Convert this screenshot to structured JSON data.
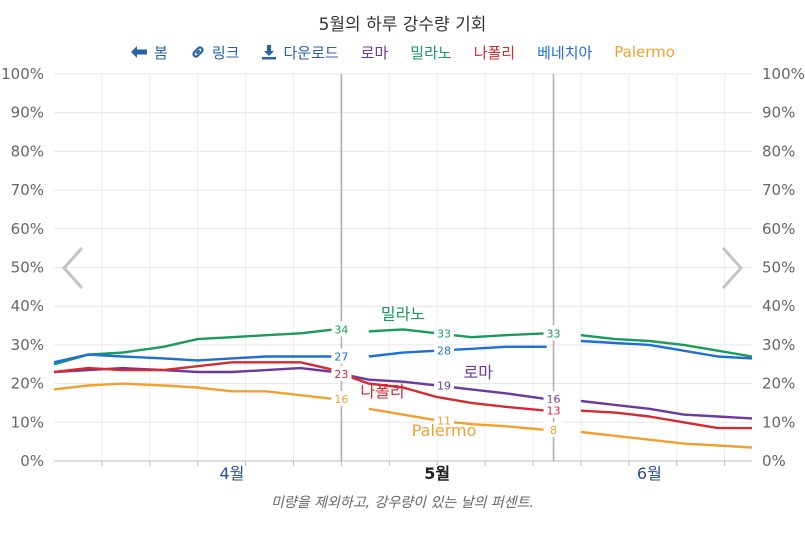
{
  "title": "5월의 하루 강수량 기회",
  "caption": "미량을 제외하고, 강우량이 있는 날의 퍼센트.",
  "toolbar": {
    "back_label": "봄",
    "link_label": "링크",
    "download_label": "다운로드"
  },
  "icons": {
    "back": "arrow-left-icon",
    "link": "link-icon",
    "download": "download-icon",
    "prev": "chevron-left-icon",
    "next": "chevron-right-icon"
  },
  "chart_data": {
    "type": "line",
    "x_start": "2024-03-20",
    "x_end": "2024-06-30",
    "y_range": [
      0,
      100
    ],
    "y_ticks": [
      "0%",
      "10%",
      "20%",
      "30%",
      "40%",
      "50%",
      "60%",
      "70%",
      "80%",
      "90%",
      "100%"
    ],
    "x_month_labels": [
      {
        "label": "4월",
        "date": "2024-04-15"
      },
      {
        "label": "5월",
        "date": "2024-05-15"
      },
      {
        "label": "6월",
        "date": "2024-06-15"
      }
    ],
    "reference_dates": [
      "2024-05-01",
      "2024-06-01"
    ],
    "grid": true,
    "series": [
      {
        "name": "로마",
        "color": "#6b3a9c",
        "points": [
          [
            "2024-03-20",
            23
          ],
          [
            "2024-03-25",
            23.5
          ],
          [
            "2024-03-30",
            24
          ],
          [
            "2024-04-05",
            23.5
          ],
          [
            "2024-04-10",
            23
          ],
          [
            "2024-04-15",
            23
          ],
          [
            "2024-04-20",
            23.5
          ],
          [
            "2024-04-25",
            24
          ],
          [
            "2024-04-30",
            23
          ],
          [
            "2024-05-01",
            22.5
          ],
          [
            "2024-05-05",
            21
          ],
          [
            "2024-05-10",
            20.5
          ],
          [
            "2024-05-15",
            19.5
          ],
          [
            "2024-05-20",
            18.5
          ],
          [
            "2024-05-25",
            17.5
          ],
          [
            "2024-05-31",
            16
          ],
          [
            "2024-06-05",
            15.5
          ],
          [
            "2024-06-10",
            14.5
          ],
          [
            "2024-06-15",
            13.5
          ],
          [
            "2024-06-20",
            12
          ],
          [
            "2024-06-25",
            11.5
          ],
          [
            "2024-06-30",
            11
          ]
        ],
        "labels": [
          {
            "date": "2024-05-01",
            "text": "23"
          },
          {
            "date": "2024-06-01",
            "text": "16"
          },
          {
            "date": "2024-05-16",
            "text": "19"
          }
        ],
        "legend_label": "로마",
        "name_label": {
          "text": "로마",
          "date": "2024-05-21",
          "value": 21.5
        }
      },
      {
        "name": "밀라노",
        "color": "#1a9a5c",
        "points": [
          [
            "2024-03-20",
            25
          ],
          [
            "2024-03-25",
            27.5
          ],
          [
            "2024-03-30",
            28
          ],
          [
            "2024-04-05",
            29.5
          ],
          [
            "2024-04-10",
            31.5
          ],
          [
            "2024-04-15",
            32
          ],
          [
            "2024-04-20",
            32.5
          ],
          [
            "2024-04-25",
            33
          ],
          [
            "2024-04-30",
            34
          ],
          [
            "2024-05-05",
            33.5
          ],
          [
            "2024-05-10",
            34
          ],
          [
            "2024-05-15",
            33
          ],
          [
            "2024-05-20",
            32
          ],
          [
            "2024-05-25",
            32.5
          ],
          [
            "2024-05-31",
            33
          ],
          [
            "2024-06-05",
            32.5
          ],
          [
            "2024-06-10",
            31.5
          ],
          [
            "2024-06-15",
            31
          ],
          [
            "2024-06-20",
            30
          ],
          [
            "2024-06-25",
            28.5
          ],
          [
            "2024-06-30",
            27
          ]
        ],
        "labels": [
          {
            "date": "2024-05-01",
            "text": "34"
          },
          {
            "date": "2024-06-01",
            "text": "33"
          },
          {
            "date": "2024-05-16",
            "text": "33"
          }
        ],
        "legend_label": "밀라노",
        "name_label": {
          "text": "밀라노",
          "date": "2024-05-10",
          "value": 36.5
        }
      },
      {
        "name": "나폴리",
        "color": "#d42a32",
        "points": [
          [
            "2024-03-20",
            23
          ],
          [
            "2024-03-25",
            24
          ],
          [
            "2024-03-30",
            23.5
          ],
          [
            "2024-04-05",
            23.5
          ],
          [
            "2024-04-10",
            24.5
          ],
          [
            "2024-04-15",
            25.5
          ],
          [
            "2024-04-20",
            25.5
          ],
          [
            "2024-04-25",
            25.5
          ],
          [
            "2024-04-30",
            23.5
          ],
          [
            "2024-05-01",
            22.5
          ],
          [
            "2024-05-05",
            20
          ],
          [
            "2024-05-10",
            19
          ],
          [
            "2024-05-15",
            16.5
          ],
          [
            "2024-05-20",
            15
          ],
          [
            "2024-05-25",
            14
          ],
          [
            "2024-05-31",
            13
          ],
          [
            "2024-06-05",
            13
          ],
          [
            "2024-06-10",
            12.5
          ],
          [
            "2024-06-15",
            11.5
          ],
          [
            "2024-06-20",
            10
          ],
          [
            "2024-06-25",
            8.5
          ],
          [
            "2024-06-30",
            8.5
          ]
        ],
        "labels": [
          {
            "date": "2024-05-01",
            "text": "23"
          },
          {
            "date": "2024-06-01",
            "text": "13"
          },
          {
            "date": "2024-05-16",
            "text": ""
          }
        ],
        "legend_label": "나폴리",
        "name_label": {
          "text": "나폴리",
          "date": "2024-05-07",
          "value": 16.5
        }
      },
      {
        "name": "베네치아",
        "color": "#1d6fd6",
        "points": [
          [
            "2024-03-20",
            25.5
          ],
          [
            "2024-03-25",
            27.5
          ],
          [
            "2024-03-30",
            27
          ],
          [
            "2024-04-05",
            26.5
          ],
          [
            "2024-04-10",
            26
          ],
          [
            "2024-04-15",
            26.5
          ],
          [
            "2024-04-20",
            27
          ],
          [
            "2024-04-25",
            27
          ],
          [
            "2024-04-30",
            27
          ],
          [
            "2024-05-05",
            27
          ],
          [
            "2024-05-10",
            28
          ],
          [
            "2024-05-15",
            28.5
          ],
          [
            "2024-05-20",
            29
          ],
          [
            "2024-05-25",
            29.5
          ],
          [
            "2024-05-31",
            29.5
          ],
          [
            "2024-06-05",
            31
          ],
          [
            "2024-06-10",
            30.5
          ],
          [
            "2024-06-15",
            30
          ],
          [
            "2024-06-20",
            28.5
          ],
          [
            "2024-06-25",
            27
          ],
          [
            "2024-06-30",
            26.5
          ]
        ],
        "labels": [
          {
            "date": "2024-05-01",
            "text": "27"
          },
          {
            "date": "2024-05-16",
            "text": "28"
          },
          {
            "date": "2024-06-01",
            "text": ""
          }
        ],
        "legend_label": "베네치아",
        "name_label": {
          "text": "",
          "date": "2024-05-10",
          "value": 30
        }
      },
      {
        "name": "Palermo",
        "color": "#f0a030",
        "points": [
          [
            "2024-03-20",
            18.5
          ],
          [
            "2024-03-25",
            19.5
          ],
          [
            "2024-03-30",
            20
          ],
          [
            "2024-04-05",
            19.5
          ],
          [
            "2024-04-10",
            19
          ],
          [
            "2024-04-15",
            18
          ],
          [
            "2024-04-20",
            18
          ],
          [
            "2024-04-25",
            17
          ],
          [
            "2024-04-30",
            16
          ],
          [
            "2024-05-05",
            13.5
          ],
          [
            "2024-05-10",
            12
          ],
          [
            "2024-05-15",
            10.5
          ],
          [
            "2024-05-20",
            9.5
          ],
          [
            "2024-05-25",
            9
          ],
          [
            "2024-05-31",
            8
          ],
          [
            "2024-06-05",
            7.5
          ],
          [
            "2024-06-10",
            6.5
          ],
          [
            "2024-06-15",
            5.5
          ],
          [
            "2024-06-20",
            4.5
          ],
          [
            "2024-06-25",
            4
          ],
          [
            "2024-06-30",
            3.5
          ]
        ],
        "labels": [
          {
            "date": "2024-05-01",
            "text": "16"
          },
          {
            "date": "2024-05-16",
            "text": "11"
          },
          {
            "date": "2024-06-01",
            "text": "8"
          }
        ],
        "legend_label": "Palermo",
        "name_label": {
          "text": "Palermo",
          "date": "2024-05-16",
          "value": 6.5
        }
      }
    ]
  }
}
